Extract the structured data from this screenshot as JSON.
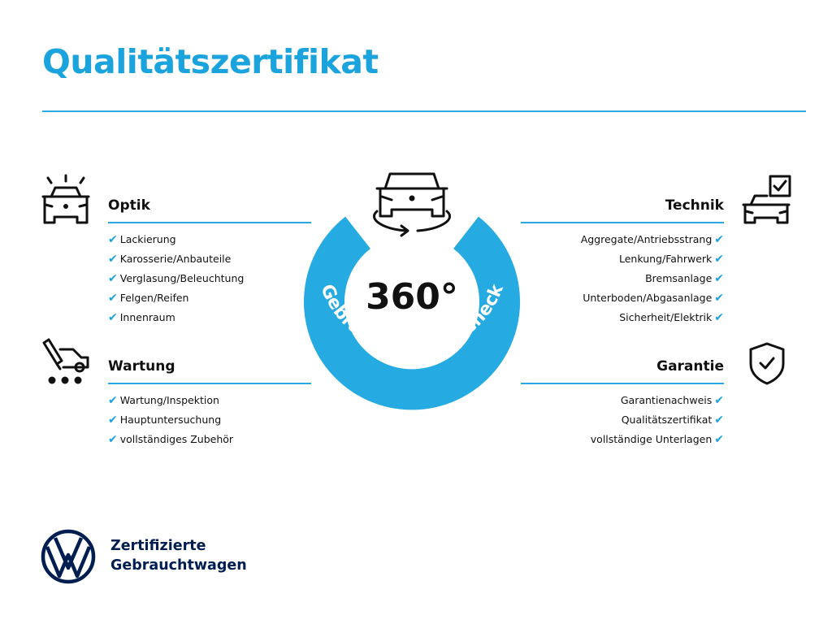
{
  "title": "Qualitätszertifikat",
  "colors": {
    "accent": "#1aa3dc",
    "brand_navy": "#001e50",
    "text": "#111111"
  },
  "check_icon": "✔",
  "center": {
    "degree": "360°",
    "ring_text": "Gebrauchtwagen-Check",
    "icon": "car-rotate-icon"
  },
  "sections": {
    "optik": {
      "heading": "Optik",
      "icon": "car-lights-icon",
      "items": [
        "Lackierung",
        "Karosserie/Anbauteile",
        "Verglasung/Beleuchtung",
        "Felgen/Reifen",
        "Innenraum"
      ]
    },
    "wartung": {
      "heading": "Wartung",
      "icon": "car-service-icon",
      "items": [
        "Wartung/Inspektion",
        "Hauptuntersuchung",
        "vollständiges Zubehör"
      ]
    },
    "technik": {
      "heading": "Technik",
      "icon": "car-checklist-icon",
      "items": [
        "Aggregate/Antriebsstrang",
        "Lenkung/Fahrwerk",
        "Bremsanlage",
        "Unterboden/Abgasanlage",
        "Sicherheit/Elektrik"
      ]
    },
    "garantie": {
      "heading": "Garantie",
      "icon": "shield-check-icon",
      "items": [
        "Garantienachweis",
        "Qualitätszertifikat",
        "vollständige Unterlagen"
      ]
    }
  },
  "brand": {
    "logo": "VW",
    "line1": "Zertifizierte",
    "line2": "Gebrauchtwagen"
  }
}
